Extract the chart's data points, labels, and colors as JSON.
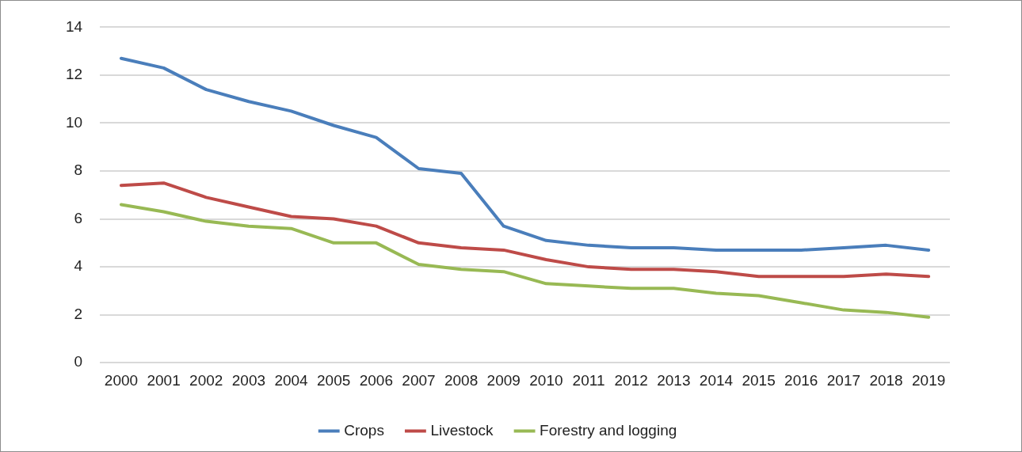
{
  "chart_data": {
    "type": "line",
    "categories": [
      "2000",
      "2001",
      "2002",
      "2003",
      "2004",
      "2005",
      "2006",
      "2007",
      "2008",
      "2009",
      "2010",
      "2011",
      "2012",
      "2013",
      "2014",
      "2015",
      "2016",
      "2017",
      "2018",
      "2019"
    ],
    "series": [
      {
        "name": "Crops",
        "color": "#4a7ebb",
        "values": [
          12.7,
          12.3,
          11.4,
          10.9,
          10.5,
          9.9,
          9.4,
          8.1,
          7.9,
          5.7,
          5.1,
          4.9,
          4.8,
          4.8,
          4.7,
          4.7,
          4.7,
          4.8,
          4.9,
          4.7
        ]
      },
      {
        "name": "Livestock",
        "color": "#be4b48",
        "values": [
          7.4,
          7.5,
          6.9,
          6.5,
          6.1,
          6.0,
          5.7,
          5.0,
          4.8,
          4.7,
          4.3,
          4.0,
          3.9,
          3.9,
          3.8,
          3.6,
          3.6,
          3.6,
          3.7,
          3.6
        ]
      },
      {
        "name": "Forestry and logging",
        "color": "#98b954",
        "values": [
          6.6,
          6.3,
          5.9,
          5.7,
          5.6,
          5.0,
          5.0,
          4.1,
          3.9,
          3.8,
          3.3,
          3.2,
          3.1,
          3.1,
          2.9,
          2.8,
          2.5,
          2.2,
          2.1,
          1.9
        ]
      }
    ],
    "ylim": [
      0,
      14
    ],
    "yticks": [
      0,
      2,
      4,
      6,
      8,
      10,
      12,
      14
    ],
    "grid": "y",
    "legend": "bottom",
    "marker": "none",
    "line_style": "solid"
  }
}
